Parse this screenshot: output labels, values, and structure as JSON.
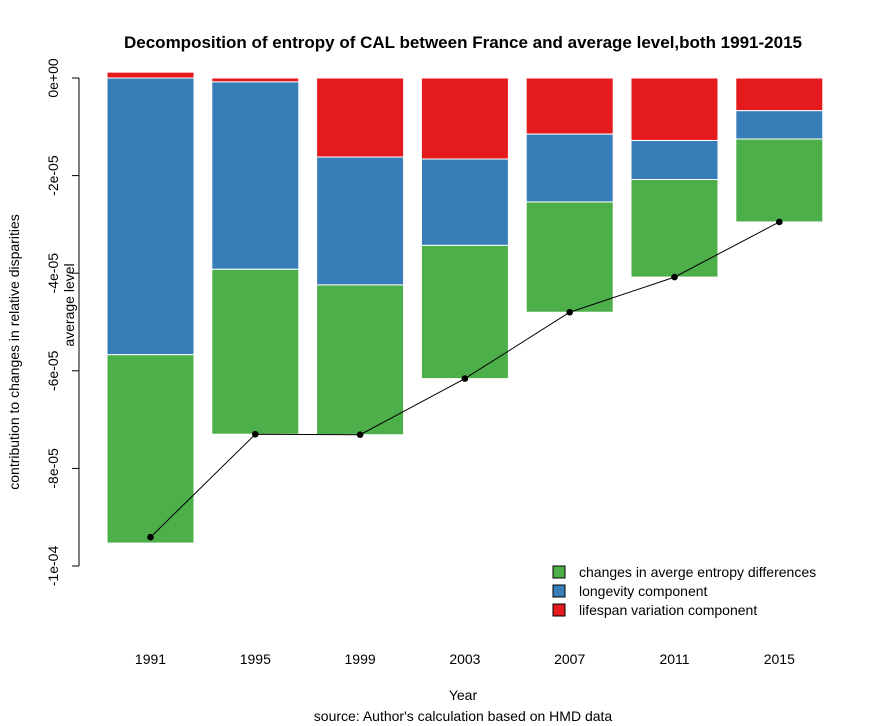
{
  "chart_data": {
    "type": "bar",
    "stacked": true,
    "title": "Decomposition of entropy of CAL between France and average level,both 1991-2015",
    "xlabel": "Year",
    "ylabel": "contribution to changes in relative disparities",
    "caption": "source: Author's calculation based on HMD data",
    "line_label": "average level",
    "categories": [
      "1991",
      "1995",
      "1999",
      "2003",
      "2007",
      "2011",
      "2015"
    ],
    "ylim": [
      -0.0001,
      0
    ],
    "yticks": [
      {
        "value": 0,
        "label": "0e+00"
      },
      {
        "value": -2e-05,
        "label": "-2e-05"
      },
      {
        "value": -4e-05,
        "label": "-4e-05"
      },
      {
        "value": -6e-05,
        "label": "-6e-05"
      },
      {
        "value": -8e-05,
        "label": "-8e-05"
      },
      {
        "value": -0.0001,
        "label": "-1e-04"
      }
    ],
    "series": [
      {
        "name": "lifespan variation component",
        "color": "#e41a1c",
        "values": [
          1.2e-06,
          -8e-07,
          -1.62e-05,
          -1.66e-05,
          -1.15e-05,
          -1.28e-05,
          -6.7e-06
        ]
      },
      {
        "name": "longevity component",
        "color": "#377eb8",
        "values": [
          -5.67e-05,
          -3.84e-05,
          -2.62e-05,
          -1.77e-05,
          -1.39e-05,
          -8e-06,
          -5.8e-06
        ]
      },
      {
        "name": "changes in averge entropy differences",
        "color": "#4daf4a",
        "values": [
          -3.86e-05,
          -3.38e-05,
          -3.07e-05,
          -2.73e-05,
          -2.26e-05,
          -2e-05,
          -1.7e-05
        ]
      }
    ],
    "average_level": [
      -9.41e-05,
      -7.3e-05,
      -7.31e-05,
      -6.16e-05,
      -4.8e-05,
      -4.08e-05,
      -2.95e-05
    ],
    "legend": {
      "position": "bottom-right",
      "entries": [
        {
          "label": "changes in averge entropy differences",
          "color": "#4daf4a"
        },
        {
          "label": "longevity component",
          "color": "#377eb8"
        },
        {
          "label": "lifespan variation component",
          "color": "#e41a1c"
        }
      ]
    },
    "grid": false
  }
}
